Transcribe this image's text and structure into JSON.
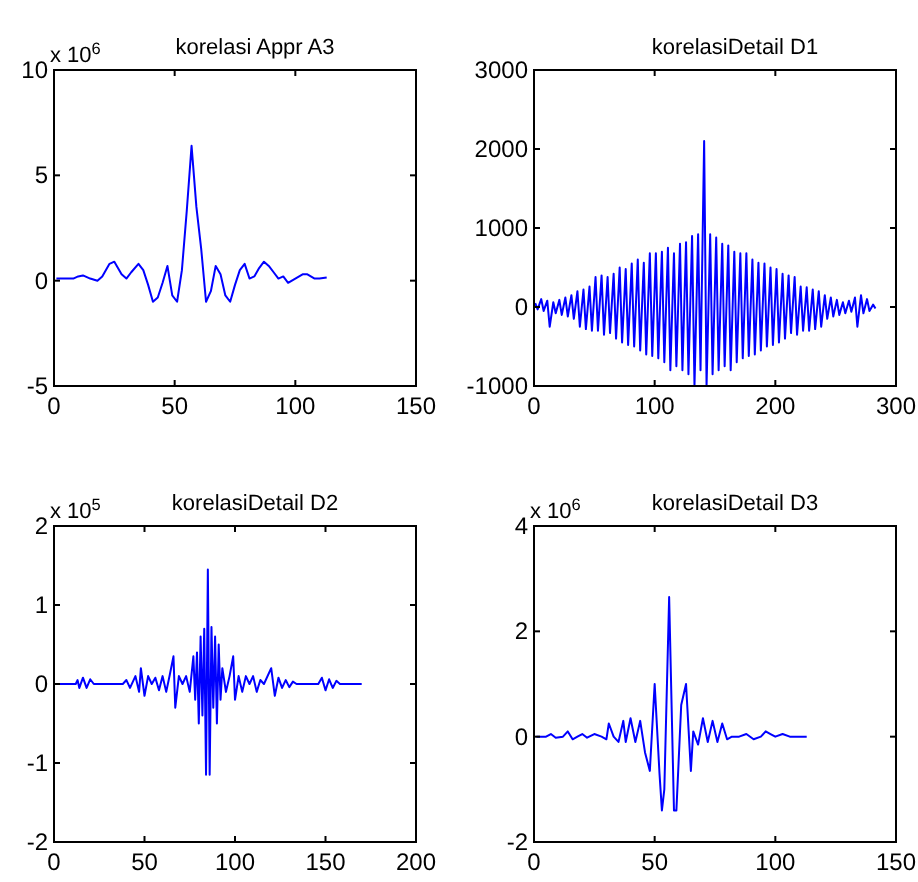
{
  "chart_data": [
    {
      "type": "line",
      "title": "korelasi Appr A3",
      "annotations": [
        "x 10$^{6}$"
      ],
      "xlim": [
        0,
        150
      ],
      "xticks": [
        0,
        50,
        100,
        150
      ],
      "ylim": [
        -5,
        10
      ],
      "yticks": [
        -5,
        0,
        5,
        10
      ],
      "x": [
        1,
        5,
        8,
        10,
        12,
        15,
        18,
        20,
        23,
        25,
        28,
        30,
        32,
        35,
        37,
        39,
        41,
        43,
        45,
        47,
        49,
        51,
        53,
        55,
        57,
        59,
        61,
        63,
        65,
        67,
        69,
        71,
        73,
        75,
        77,
        79,
        81,
        83,
        85,
        87,
        89,
        91,
        93,
        95,
        97,
        100,
        103,
        105,
        108,
        110,
        113
      ],
      "series": [
        {
          "color": "#0000ff",
          "values": [
            0.1,
            0.1,
            0.1,
            0.2,
            0.25,
            0.1,
            0.0,
            0.2,
            0.8,
            0.9,
            0.3,
            0.1,
            0.4,
            0.8,
            0.5,
            -0.2,
            -1.0,
            -0.8,
            -0.1,
            0.7,
            -0.7,
            -1.0,
            0.5,
            3.3,
            6.4,
            3.5,
            1.5,
            -1.0,
            -0.5,
            0.7,
            0.3,
            -0.7,
            -1.0,
            -0.2,
            0.5,
            0.8,
            0.1,
            0.2,
            0.6,
            0.9,
            0.7,
            0.4,
            0.1,
            0.2,
            -0.1,
            0.1,
            0.3,
            0.3,
            0.1,
            0.1,
            0.15
          ]
        }
      ]
    },
    {
      "type": "line",
      "title": "korelasiDetail D1",
      "xlim": [
        0,
        300
      ],
      "xticks": [
        0,
        100,
        200,
        300
      ],
      "ylim": [
        -1000,
        3000
      ],
      "yticks": [
        -1000,
        0,
        1000,
        2000,
        3000
      ],
      "x": [
        1,
        3,
        6,
        8,
        11,
        13,
        16,
        18,
        21,
        23,
        26,
        28,
        31,
        33,
        36,
        38,
        41,
        43,
        46,
        48,
        51,
        53,
        56,
        58,
        61,
        63,
        66,
        68,
        71,
        73,
        76,
        78,
        81,
        83,
        86,
        88,
        91,
        93,
        96,
        98,
        101,
        103,
        106,
        108,
        111,
        113,
        116,
        118,
        121,
        123,
        126,
        128,
        131,
        133,
        136,
        138,
        141,
        143,
        146,
        148,
        151,
        153,
        156,
        158,
        161,
        163,
        166,
        168,
        171,
        173,
        176,
        178,
        181,
        183,
        186,
        188,
        191,
        193,
        196,
        198,
        201,
        203,
        206,
        208,
        211,
        213,
        216,
        218,
        221,
        223,
        226,
        228,
        231,
        233,
        236,
        238,
        241,
        243,
        246,
        248,
        251,
        253,
        256,
        258,
        261,
        263,
        266,
        268,
        271,
        273,
        276,
        278,
        281,
        283
      ],
      "series": [
        {
          "color": "#0000ff",
          "values": [
            50,
            -30,
            100,
            -50,
            80,
            -250,
            60,
            -80,
            90,
            -100,
            120,
            -120,
            150,
            -150,
            200,
            -250,
            220,
            -280,
            260,
            -300,
            380,
            -300,
            400,
            -350,
            380,
            -330,
            420,
            -400,
            500,
            -450,
            480,
            -480,
            550,
            -500,
            600,
            -550,
            560,
            -600,
            680,
            -620,
            680,
            -650,
            700,
            -700,
            750,
            -800,
            680,
            -750,
            800,
            -800,
            820,
            -850,
            900,
            -1000,
            920,
            -800,
            2100,
            -1000,
            920,
            -850,
            880,
            -800,
            800,
            -750,
            780,
            -800,
            700,
            -700,
            680,
            -650,
            680,
            -620,
            600,
            -600,
            560,
            -550,
            550,
            -500,
            500,
            -480,
            480,
            -450,
            420,
            -400,
            400,
            -330,
            380,
            -350,
            260,
            -300,
            250,
            -300,
            220,
            -280,
            200,
            -250,
            150,
            -150,
            120,
            -120,
            90,
            -100,
            60,
            -80,
            80,
            -60,
            120,
            -250,
            150,
            -80,
            100,
            -50,
            30,
            -20
          ]
        }
      ]
    },
    {
      "type": "line",
      "title": "korelasiDetail D2",
      "annotations": [
        "x 10$^{5}$"
      ],
      "xlim": [
        0,
        200
      ],
      "xticks": [
        0,
        50,
        100,
        150,
        200
      ],
      "ylim": [
        -2,
        2
      ],
      "yticks": [
        -2,
        -1,
        0,
        1,
        2
      ],
      "x": [
        1,
        12,
        13,
        14,
        16,
        18,
        20,
        22,
        38,
        40,
        42,
        45,
        47,
        48,
        50,
        52,
        54,
        56,
        58,
        60,
        62,
        64,
        66,
        67,
        69,
        71,
        73,
        75,
        77,
        78,
        79,
        80,
        81,
        82,
        83,
        84,
        85,
        86,
        87,
        88,
        89,
        90,
        91,
        92,
        93,
        95,
        97,
        99,
        100,
        102,
        104,
        106,
        108,
        110,
        112,
        114,
        116,
        120,
        122,
        124,
        126,
        128,
        130,
        132,
        134,
        146,
        148,
        150,
        152,
        154,
        156,
        158,
        170
      ],
      "series": [
        {
          "color": "#0000ff",
          "values": [
            0,
            0,
            0.05,
            -0.05,
            0.08,
            -0.05,
            0.06,
            0,
            0,
            0.05,
            -0.05,
            0.1,
            -0.1,
            0.2,
            -0.15,
            0.1,
            0,
            0.08,
            -0.08,
            0.1,
            -0.1,
            0.12,
            0.35,
            -0.3,
            0.1,
            0,
            0.1,
            -0.1,
            0.35,
            -0.2,
            0.4,
            -0.5,
            0.6,
            -0.4,
            0.7,
            -1.15,
            1.45,
            -1.15,
            0.72,
            -0.3,
            0.6,
            -0.5,
            0.5,
            -0.2,
            0.2,
            -0.1,
            0.1,
            0.35,
            -0.2,
            0.1,
            -0.1,
            0.1,
            0,
            0.1,
            -0.1,
            0.05,
            0,
            0.2,
            -0.15,
            0.08,
            -0.05,
            0.05,
            -0.04,
            0.03,
            0,
            0,
            0.08,
            -0.08,
            0.06,
            -0.05,
            0.04,
            0,
            0
          ]
        }
      ]
    },
    {
      "type": "line",
      "title": "korelasiDetail D3",
      "annotations": [
        "x 10$^{6}$"
      ],
      "xlim": [
        0,
        150
      ],
      "xticks": [
        0,
        50,
        100,
        150
      ],
      "ylim": [
        -2,
        4
      ],
      "yticks": [
        -2,
        0,
        2,
        4
      ],
      "x": [
        1,
        5,
        7,
        9,
        12,
        14,
        16,
        18,
        20,
        22,
        25,
        28,
        30,
        31,
        33,
        35,
        37,
        38,
        40,
        42,
        44,
        46,
        48,
        50,
        52,
        53,
        54,
        56,
        58,
        59,
        61,
        63,
        65,
        66,
        68,
        70,
        72,
        74,
        76,
        78,
        80,
        82,
        85,
        88,
        91,
        94,
        96,
        98,
        100,
        103,
        106,
        110,
        113
      ],
      "series": [
        {
          "color": "#0000ff",
          "values": [
            0,
            0,
            0.05,
            -0.02,
            0,
            0.1,
            -0.05,
            0,
            0.05,
            -0.02,
            0.05,
            0,
            -0.05,
            0.25,
            0,
            -0.1,
            0.3,
            -0.1,
            0.35,
            -0.1,
            0.3,
            -0.3,
            -0.65,
            1.0,
            -0.7,
            -1.4,
            -1.0,
            2.65,
            -1.4,
            -1.4,
            0.6,
            1.0,
            -0.65,
            0.1,
            -0.15,
            0.35,
            -0.1,
            0.3,
            -0.1,
            0.25,
            -0.05,
            0,
            0,
            0.05,
            -0.05,
            0,
            0.1,
            0.05,
            0,
            0.05,
            0,
            0,
            0
          ]
        }
      ]
    }
  ]
}
